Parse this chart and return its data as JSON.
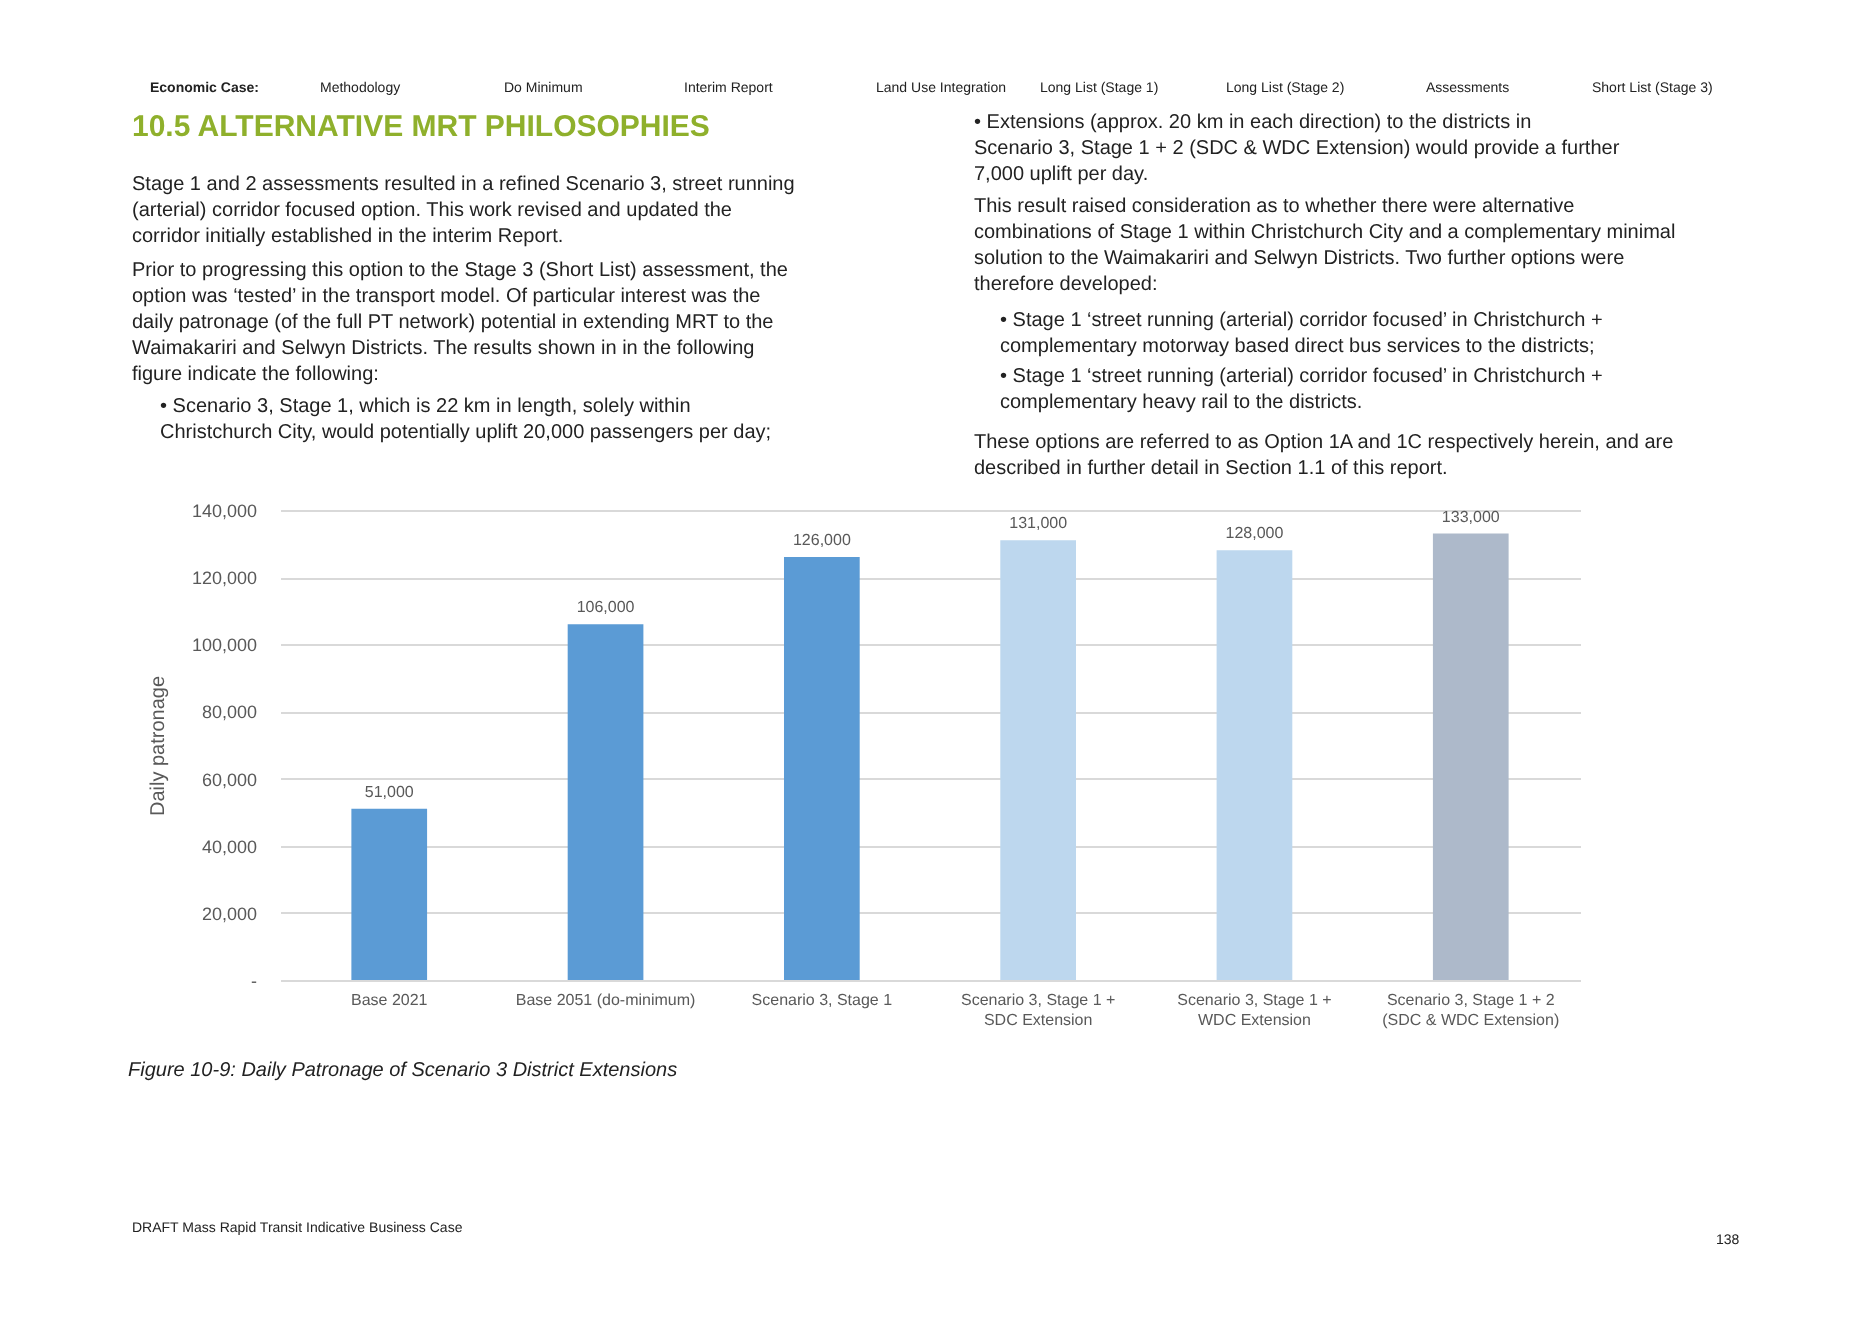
{
  "chart_data": {
    "type": "bar",
    "title": "10.5 ALTERNATIVE MRT PHILOSOPHIES",
    "ylabel": "Daily patronage",
    "categories": [
      "Base 2021",
      "Base 2051 (do-minimum)",
      "Scenario 3, Stage 1",
      "Scenario 3, Stage 1 + SDC Extension",
      "Scenario 3, Stage 1 + WDC Extension",
      "Scenario 3, Stage 1 + 2 (SDC & WDC Extension)"
    ],
    "values": [
      51000,
      106000,
      126000,
      131000,
      128000,
      133000
    ],
    "colors": [
      "#5b9bd5",
      "#5b9bd5",
      "#5b9bd5",
      "#bdd7ee",
      "#bdd7ee",
      "#adb9ca"
    ],
    "value_labels": [
      "51,000",
      "106,000",
      "126,000",
      "131,000",
      "128,000",
      "133,000"
    ],
    "ylim": [
      0,
      140000
    ],
    "yticks": [
      {
        "value": 0,
        "label": "-"
      },
      {
        "value": 20000,
        "label": "20,000"
      },
      {
        "value": 40000,
        "label": "40,000"
      },
      {
        "value": 60000,
        "label": "60,000"
      },
      {
        "value": 80000,
        "label": "80,000"
      },
      {
        "value": 100000,
        "label": "100,000"
      },
      {
        "value": 120000,
        "label": "120,000"
      },
      {
        "value": 140000,
        "label": "140,000"
      }
    ],
    "grid": "y",
    "annotations": [
      "Economic Case:",
      "Methodology",
      "Do Minimum",
      "Interim Report",
      "Land Use Integration",
      "Long List (Stage 1)",
      "Long List (Stage 2)",
      "Assessments",
      "Short List (Stage 3)",
      "Stage 1 and 2 assessments resulted in a refined Scenario 3, street running (arterial) corridor focused option. This work revised and updated the corridor initially established in the interim Report.",
      "Prior to progressing this option to the Stage 3 (Short List) assessment, the option was ‘tested’ in the transport model. Of particular interest was the daily patronage (of the full PT network) potential in extending MRT to the Waimakariri and Selwyn Districts. The results shown in in the following figure indicate the following:",
      "• Scenario 3, Stage 1, which is 22 km in length, solely within Christchurch City, would potentially uplift 20,000 passengers per day;",
      "• Extensions (approx. 20 km in each direction) to the districts in Scenario 3, Stage 1 + 2 (SDC & WDC Extension) would provide a further 7,000 uplift per day.",
      "This result raised consideration as to whether there were alternative combinations of Stage 1 within Christchurch City and a complementary minimal solution to the Waimakariri and Selwyn Districts. Two further options were therefore developed:",
      "• Stage 1 ‘street running (arterial) corridor focused’ in Christchurch + complementary motorway based direct bus services to the districts;",
      "• Stage 1 ‘street running (arterial) corridor focused’ in Christchurch + complementary heavy rail to the districts.",
      "These options are referred to as Option 1A and 1C respectively herein, and are described in further detail in Section 1.1 of this report.",
      "Figure 10-9: Daily Patronage of Scenario 3 District Extensions",
      "DRAFT Mass Rapid Transit Indicative Business Case",
      "138"
    ]
  }
}
